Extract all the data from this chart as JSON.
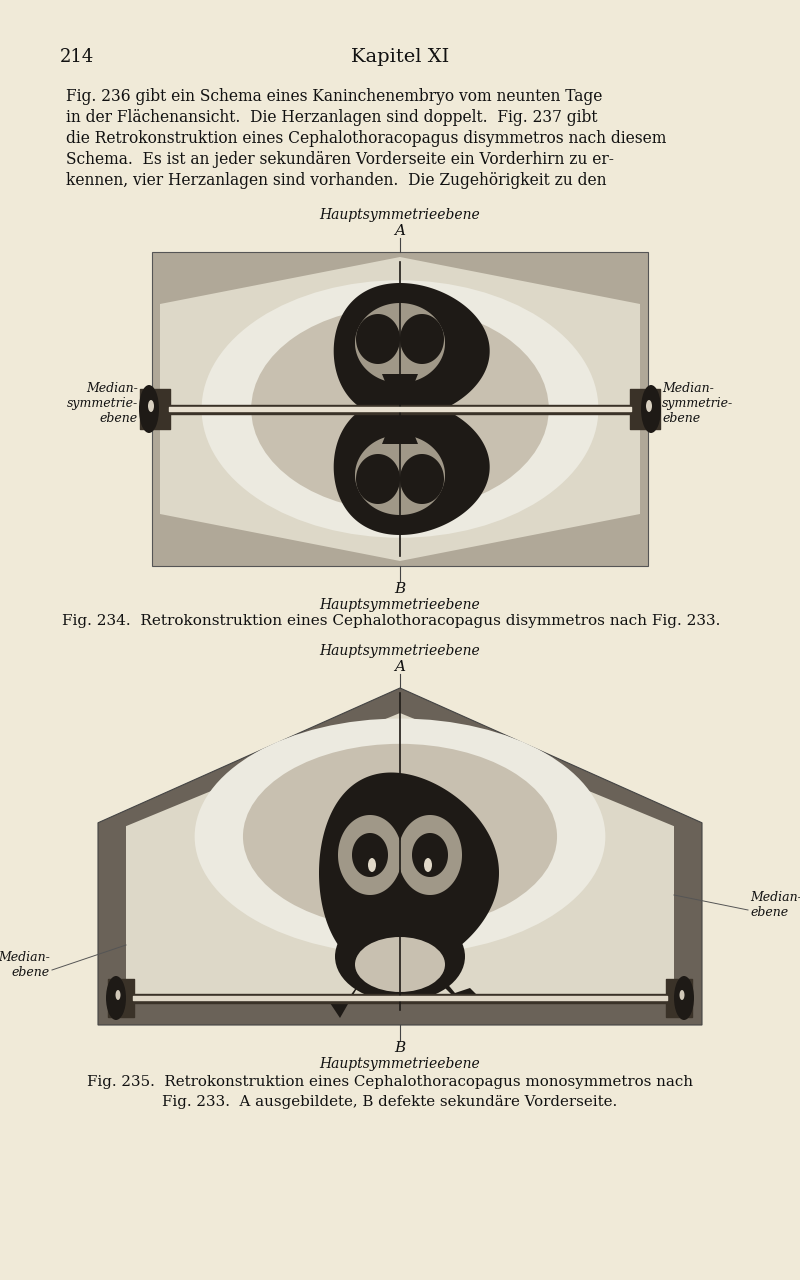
{
  "bg_color": "#f0ead8",
  "page_number": "214",
  "chapter_title": "Kapitel XI",
  "body_text_lines": [
    "Fig. 236 gibt ein Schema eines Kaninchenembryo vom neunten Tage",
    "in der Flächenansicht.  Die Herzanlagen sind doppelt.  Fig. 237 gibt",
    "die Retrokonstruktion eines Cephalothoracopagus disymmetros nach diesem",
    "Schema.  Es ist an jeder sekundären Vorderseite ein Vorderhirn zu er-",
    "kennen, vier Herzanlagen sind vorhanden.  Die Zugehörigkeit zu den"
  ],
  "fig234_caption": "Fig. 234.  Retrokonstruktion eines Cephalothoracopagus disymmetros nach Fig. 233.",
  "fig235_caption_line1": "Fig. 235.  Retrokonstruktion eines Cephalothoracopagus monosymmetros nach",
  "fig235_caption_line2": "Fig. 233.  A ausgebildete, B defekte sekundäre Vorderseite.",
  "label_hauptsymmetrieebene": "Hauptsymmetrieebene",
  "label_A": "A",
  "label_B": "B",
  "label_median_sym_L": "Median-\nsymmetrie-\nebene",
  "label_median_sym_R": "Median-\nsymmetrie-\nebene",
  "label_median_L": "Median-\nebene",
  "label_median_R": "Median-\nebene",
  "dark_color": "#1e1a16",
  "mid_dark_color": "#3a3228",
  "gray_dark": "#6a6258",
  "gray_mid": "#a09888",
  "gray_light": "#c8c0b0",
  "gray_lighter": "#ddd8c8",
  "gray_lightest": "#eceae0",
  "box_bg": "#b0a898"
}
